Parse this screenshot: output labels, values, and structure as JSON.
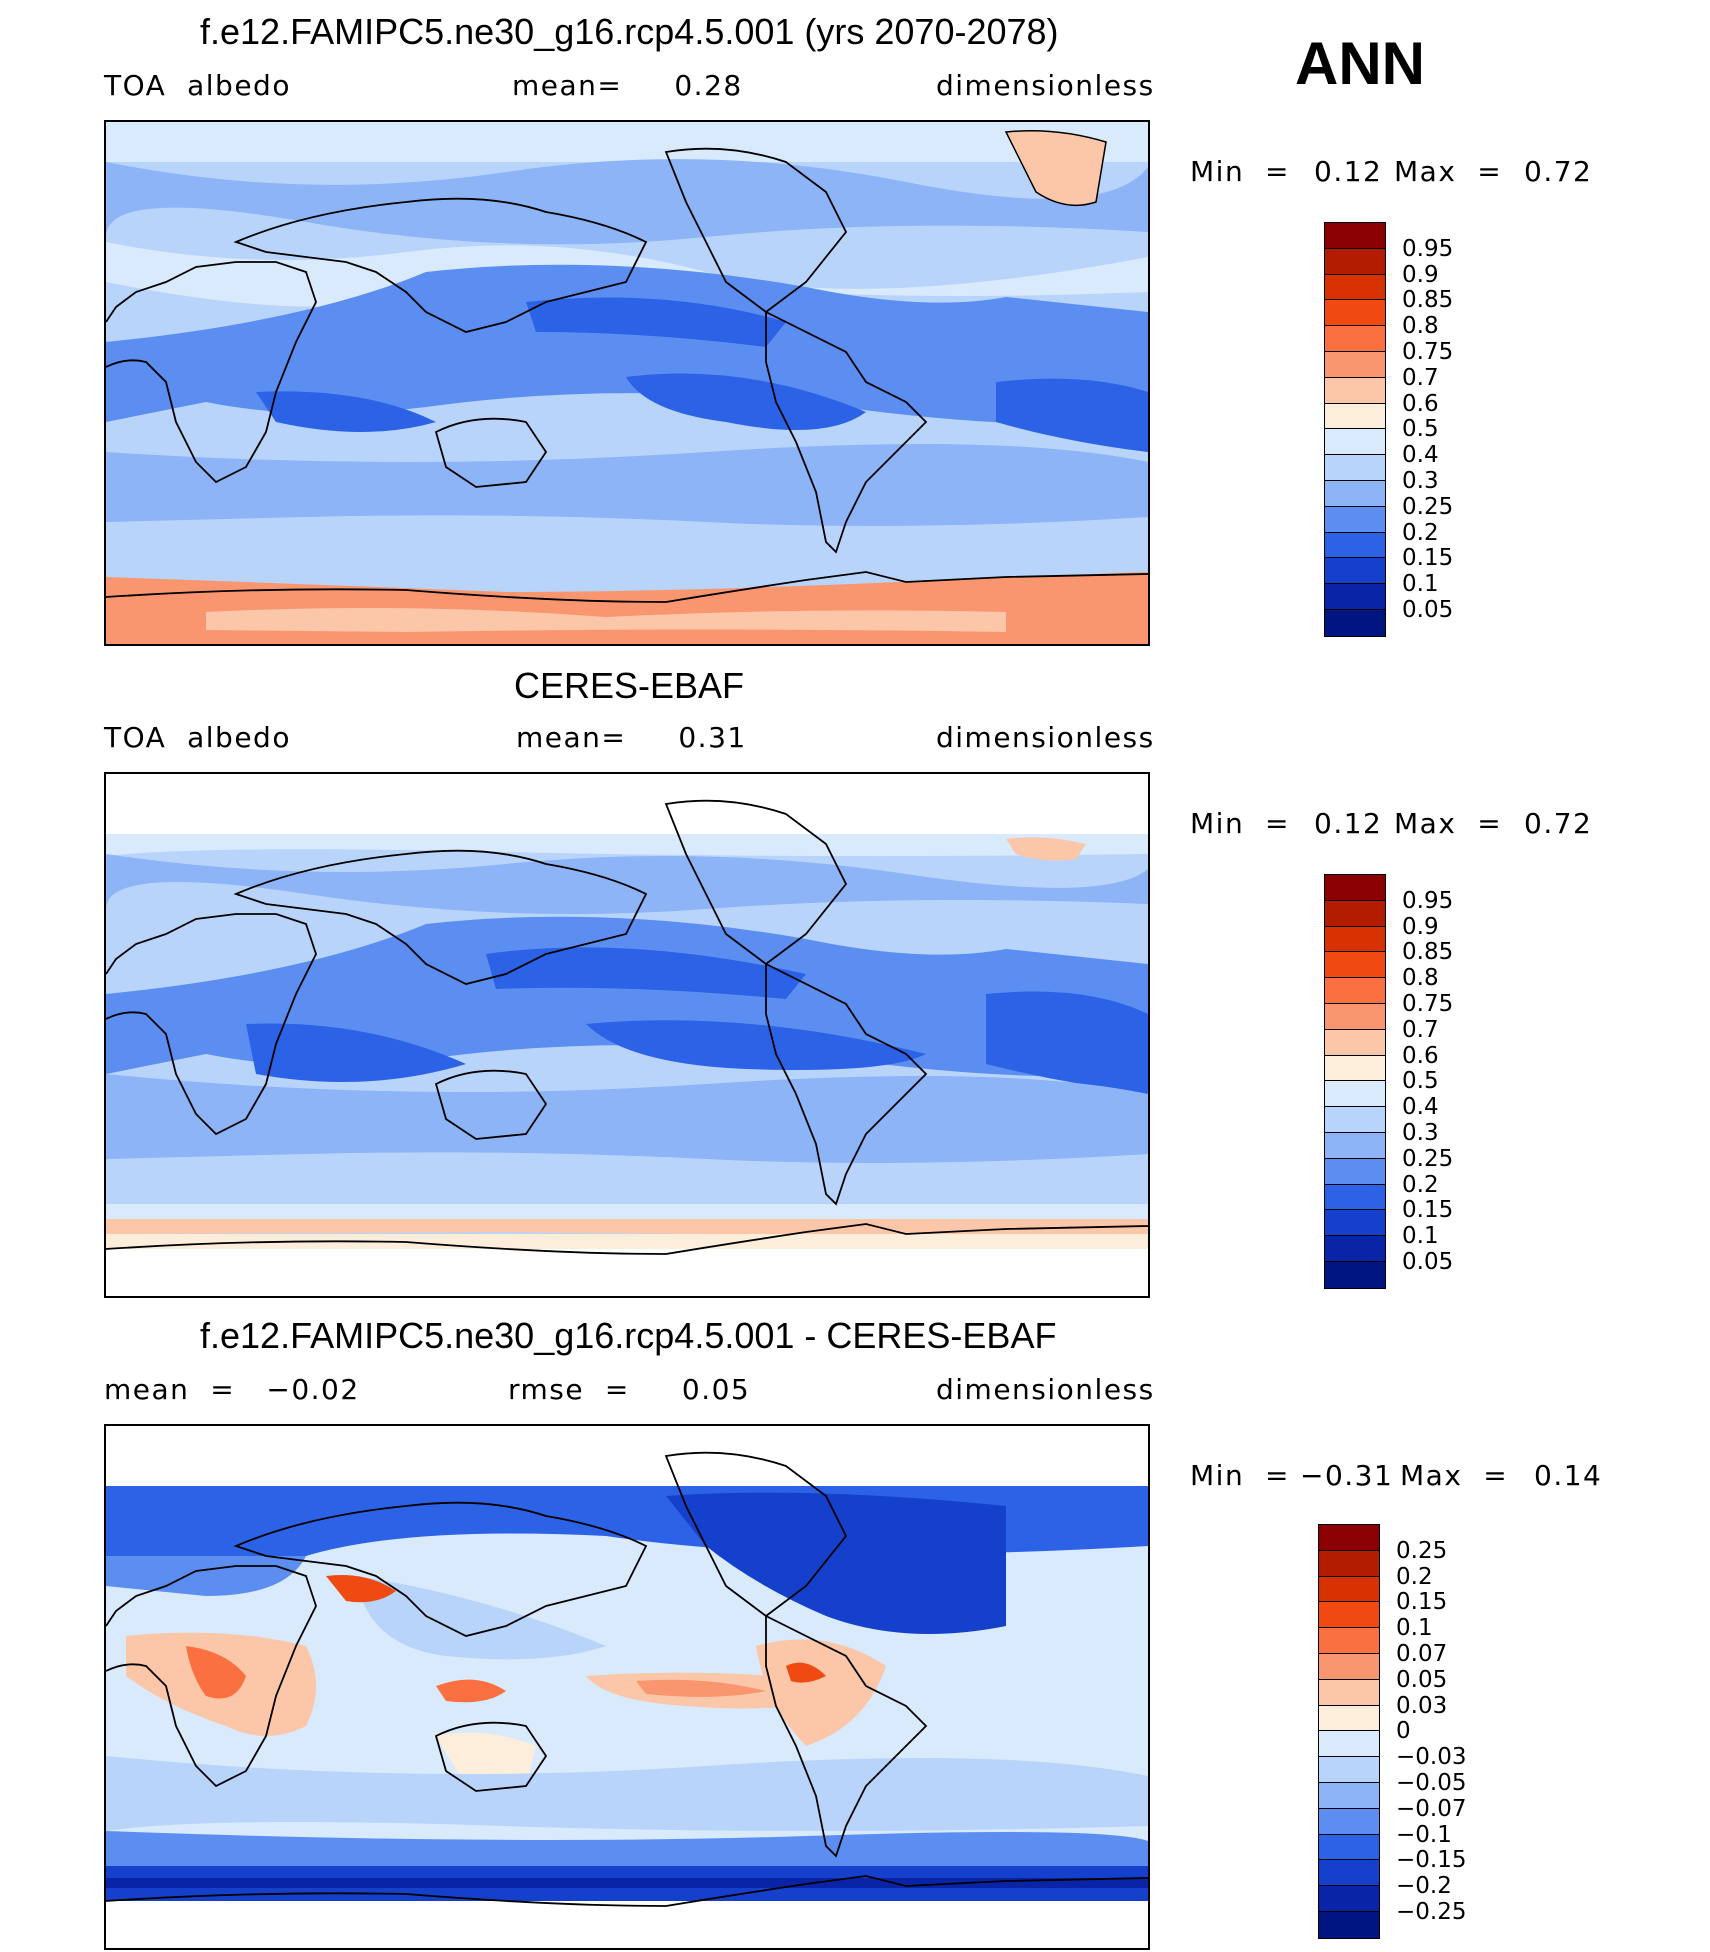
{
  "season": "ANN",
  "panels": [
    {
      "title": "f.e12.FAMIPC5.ne30_g16.rcp4.5.001 (yrs 2070-2078)",
      "left": "TOA  albedo",
      "center": "mean=     0.28",
      "right": "dimensionless",
      "min_label": "Min  =",
      "min_value": "0.12",
      "max_label": "Max  =",
      "max_value": "0.72",
      "kind": "model"
    },
    {
      "title": "CERES-EBAF",
      "left": "TOA  albedo",
      "center": "mean=     0.31",
      "right": "dimensionless",
      "min_label": "Min  =",
      "min_value": "0.12",
      "max_label": "Max  =",
      "max_value": "0.72",
      "kind": "obs"
    },
    {
      "title": "f.e12.FAMIPC5.ne30_g16.rcp4.5.001 - CERES-EBAF",
      "left": "mean  =   −0.02",
      "center": "rmse  =     0.05",
      "right": "dimensionless",
      "min_label": "Min  =",
      "min_value": "−0.31",
      "max_label": "Max  =",
      "max_value": "0.14",
      "kind": "diff"
    }
  ],
  "colorbars": {
    "abs": {
      "labels": [
        "0.95",
        "0.9",
        "0.85",
        "0.8",
        "0.75",
        "0.7",
        "0.6",
        "0.5",
        "0.4",
        "0.3",
        "0.25",
        "0.2",
        "0.15",
        "0.1",
        "0.05"
      ],
      "colors": [
        "#8b0000",
        "#b21c00",
        "#d83200",
        "#f04a12",
        "#fa7040",
        "#f99670",
        "#fcc6a8",
        "#fdeedc",
        "#d8eafc",
        "#b8d4fa",
        "#8cb4f6",
        "#5b8ef0",
        "#2c62e6",
        "#1440cc",
        "#0a24a8",
        "#001580"
      ]
    },
    "diff": {
      "labels": [
        "0.25",
        "0.2",
        "0.15",
        "0.1",
        "0.07",
        "0.05",
        "0.03",
        "0",
        "−0.03",
        "−0.05",
        "−0.07",
        "−0.1",
        "−0.15",
        "−0.2",
        "−0.25"
      ],
      "colors": [
        "#8b0000",
        "#b21c00",
        "#d83200",
        "#f04a12",
        "#fa7040",
        "#f99670",
        "#fcc6a8",
        "#fdeedc",
        "#d8eafc",
        "#b8d4fa",
        "#8cb4f6",
        "#5b8ef0",
        "#2c62e6",
        "#1440cc",
        "#0a24a8",
        "#001580"
      ]
    }
  }
}
